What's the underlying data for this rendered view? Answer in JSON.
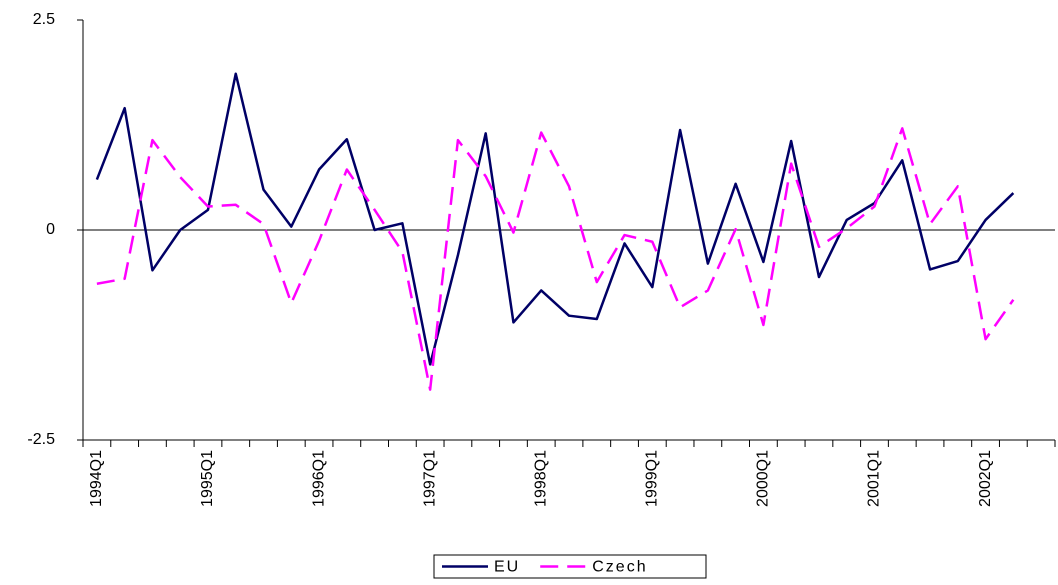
{
  "chart_data": {
    "type": "line",
    "categories": [
      "1994Q1",
      null,
      null,
      null,
      "1995Q1",
      null,
      null,
      null,
      "1996Q1",
      null,
      null,
      null,
      "1997Q1",
      null,
      null,
      null,
      "1998Q1",
      null,
      null,
      null,
      "1999Q1",
      null,
      null,
      null,
      "2000Q1",
      null,
      null,
      null,
      "2001Q1",
      null,
      null,
      null,
      "2002Q1",
      null,
      null
    ],
    "series": [
      {
        "name": "EU",
        "color": "#000066",
        "line_style": "solid",
        "values": [
          0.6,
          1.45,
          -0.48,
          0.0,
          0.24,
          1.86,
          0.48,
          0.04,
          0.72,
          1.08,
          0.0,
          0.08,
          -1.6,
          -0.3,
          1.15,
          -1.1,
          -0.72,
          -1.02,
          -1.06,
          -0.16,
          -0.68,
          1.19,
          -0.4,
          0.55,
          -0.38,
          1.06,
          -0.56,
          0.12,
          0.32,
          0.83,
          -0.47,
          -0.37,
          0.12,
          0.44,
          null
        ]
      },
      {
        "name": "Czech",
        "color": "#ff00ff",
        "line_style": "dashed",
        "values": [
          -0.64,
          -0.58,
          1.07,
          0.63,
          0.28,
          0.3,
          0.07,
          -0.87,
          -0.13,
          0.72,
          0.24,
          -0.26,
          -1.9,
          1.07,
          0.64,
          -0.03,
          1.16,
          0.52,
          -0.62,
          -0.06,
          -0.14,
          -0.92,
          -0.72,
          0.01,
          -1.13,
          0.79,
          -0.2,
          0.02,
          0.28,
          1.21,
          0.07,
          0.52,
          -1.3,
          -0.83,
          null
        ]
      }
    ],
    "ylim": [
      -2.5,
      2.5
    ],
    "yticks": [
      -2.5,
      0,
      2.5
    ],
    "grid": false,
    "legend": "bottom"
  }
}
